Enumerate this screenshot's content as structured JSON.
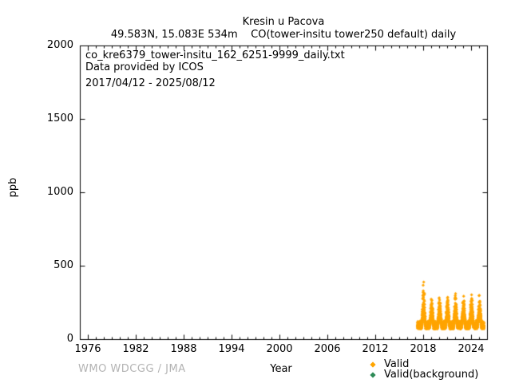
{
  "header": {
    "title": "Kresin u Pacova",
    "subtitle": "49.583N, 15.083E 534m    CO(tower-insitu tower250 default) daily"
  },
  "annotations": {
    "filename": "co_kre6379_tower-insitu_162_6251-9999_daily.txt",
    "provider": "Data provided by ICOS",
    "period": "2017/04/12 - 2025/08/12"
  },
  "axes": {
    "x_label": "Year",
    "y_label": "ppb"
  },
  "legend": {
    "position": "bottom-right below axis",
    "items": [
      {
        "label": "Valid",
        "color": "#FFA500",
        "marker": "diamond"
      },
      {
        "label": "Valid(background)",
        "color": "#2E8B57",
        "marker": "diamond"
      }
    ]
  },
  "footer": {
    "credit": "WMO WDCGG / JMA",
    "color": "#b3b3b3"
  },
  "chart_data": {
    "type": "scatter",
    "title": "Kresin u Pacova",
    "station": {
      "coords": "49.583N, 15.083E",
      "elevation": "534m"
    },
    "parameter": "CO(tower-insitu tower250 default) daily",
    "xlabel": "Year",
    "ylabel": "ppb",
    "xlim": [
      1975,
      2026
    ],
    "ylim": [
      0,
      2000
    ],
    "x_major_ticks": [
      1976,
      1982,
      1988,
      1994,
      2000,
      2006,
      2012,
      2018,
      2024
    ],
    "x_minor_step": 1,
    "y_major_ticks": [
      0,
      500,
      1000,
      1500,
      2000
    ],
    "grid": false,
    "tick_style": "inward, mirrored on top and right frame",
    "series": [
      {
        "name": "Valid",
        "color": "#FFA500",
        "marker": "diamond",
        "cadence": "daily",
        "x_start": 2017.28,
        "x_end": 2025.62,
        "period": "2017/04/12 - 2025/08/12",
        "y_floor": 55,
        "summer_dense_range": [
          70,
          130
        ],
        "winter_dense_range": [
          120,
          210
        ],
        "annual_winter_peaks": {
          "2018": 395,
          "2019": 280,
          "2020": 300,
          "2021": 285,
          "2022": 310,
          "2023": 295,
          "2024": 330,
          "2025": 315
        },
        "description": "Dense daily CO scatter hugging bottom of axis; seasonal winter spikes, summer lows"
      },
      {
        "name": "Valid(background)",
        "color": "#2E8B57",
        "marker": "diamond",
        "visible_points": 0
      }
    ]
  }
}
